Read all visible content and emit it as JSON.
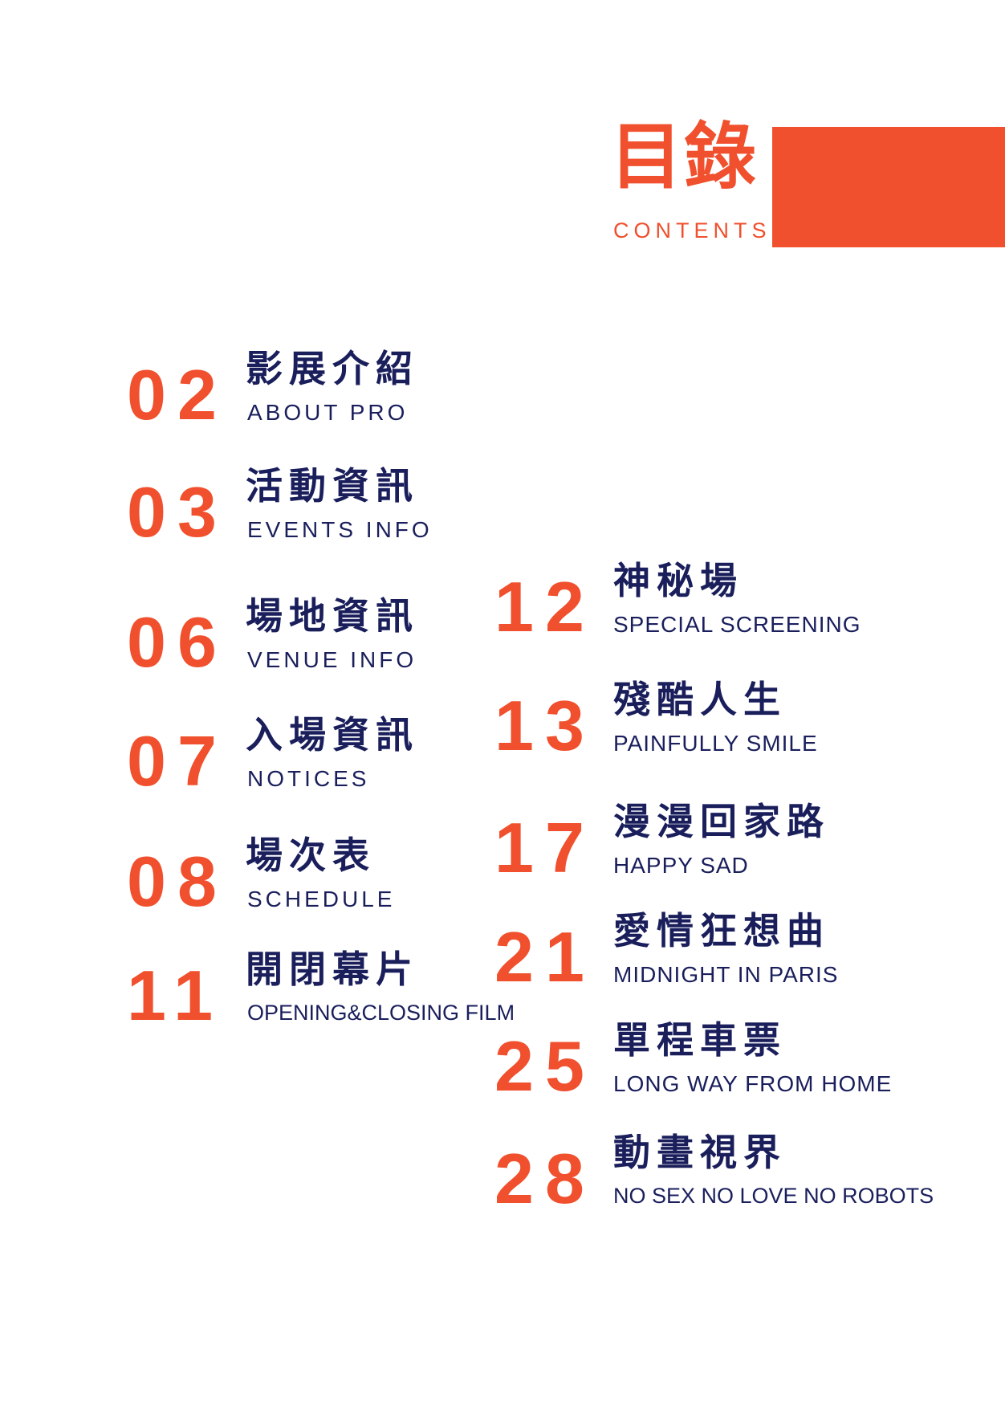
{
  "header": {
    "title_zh": "目錄",
    "title_en": "CONTENTS",
    "accent_color": "#f0502d",
    "text_color": "#1a1f5c"
  },
  "toc_left": [
    {
      "num": "02",
      "zh": "影展介紹",
      "en": "ABOUT PRO"
    },
    {
      "num": "03",
      "zh": "活動資訊",
      "en": "EVENTS INFO"
    },
    {
      "num": "06",
      "zh": "場地資訊",
      "en": "VENUE INFO"
    },
    {
      "num": "07",
      "zh": "入場資訊",
      "en": "NOTICES"
    },
    {
      "num": "08",
      "zh": "場次表",
      "en": "SCHEDULE"
    },
    {
      "num": "11",
      "zh": "開閉幕片",
      "en": "OPENING&CLOSING FILM"
    }
  ],
  "toc_right": [
    {
      "num": "12",
      "zh": "神秘場",
      "en": "SPECIAL SCREENING"
    },
    {
      "num": "13",
      "zh": "殘酷人生",
      "en": "PAINFULLY SMILE"
    },
    {
      "num": "17",
      "zh": "漫漫回家路",
      "en": "HAPPY SAD"
    },
    {
      "num": "21",
      "zh": "愛情狂想曲",
      "en": "MIDNIGHT IN PARIS"
    },
    {
      "num": "25",
      "zh": "單程車票",
      "en": "LONG WAY FROM HOME"
    },
    {
      "num": "28",
      "zh": "動畫視界",
      "en": "NO SEX NO LOVE NO ROBOTS"
    }
  ]
}
